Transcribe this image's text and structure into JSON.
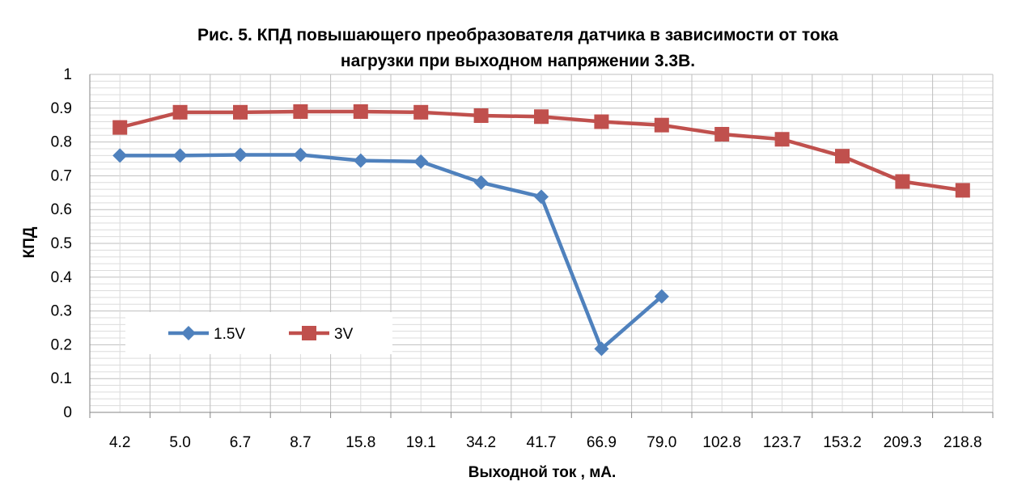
{
  "chart_data": {
    "type": "line",
    "title": "Рис. 5. КПД повышающего преобразователя датчика в зависимости от тока нагрузки при выходном напряжении 3.3В.",
    "title_lines": [
      "Рис. 5. КПД повышающего преобразователя датчика в зависимости от тока",
      "нагрузки при выходном напряжении 3.3В."
    ],
    "xlabel": "Выходной ток , мА.",
    "ylabel": "КПД",
    "ylim": [
      0,
      1
    ],
    "ytick_labels": [
      "0",
      "0.1",
      "0.2",
      "0.3",
      "0.4",
      "0.5",
      "0.6",
      "0.7",
      "0.8",
      "0.9",
      "1"
    ],
    "yticks": [
      0,
      0.1,
      0.2,
      0.3,
      0.4,
      0.5,
      0.6,
      0.7,
      0.8,
      0.9,
      1
    ],
    "categories": [
      "4.2",
      "5.0",
      "6.7",
      "8.7",
      "15.8",
      "19.1",
      "34.2",
      "41.7",
      "66.9",
      "79.0",
      "102.8",
      "123.7",
      "153.2",
      "209.3",
      "218.8"
    ],
    "grid": true,
    "legend_position": "bottom-left",
    "series": [
      {
        "name": "1.5V",
        "color": "#4f81bd",
        "marker": "diamond",
        "values": [
          0.76,
          0.76,
          0.762,
          0.762,
          0.745,
          0.742,
          0.68,
          0.638,
          0.188,
          0.343,
          null,
          null,
          null,
          null,
          null
        ]
      },
      {
        "name": "3V",
        "color": "#c0504d",
        "marker": "square",
        "values": [
          0.843,
          0.888,
          0.888,
          0.89,
          0.89,
          0.888,
          0.878,
          0.875,
          0.86,
          0.85,
          0.823,
          0.808,
          0.758,
          0.683,
          0.657
        ]
      }
    ]
  }
}
